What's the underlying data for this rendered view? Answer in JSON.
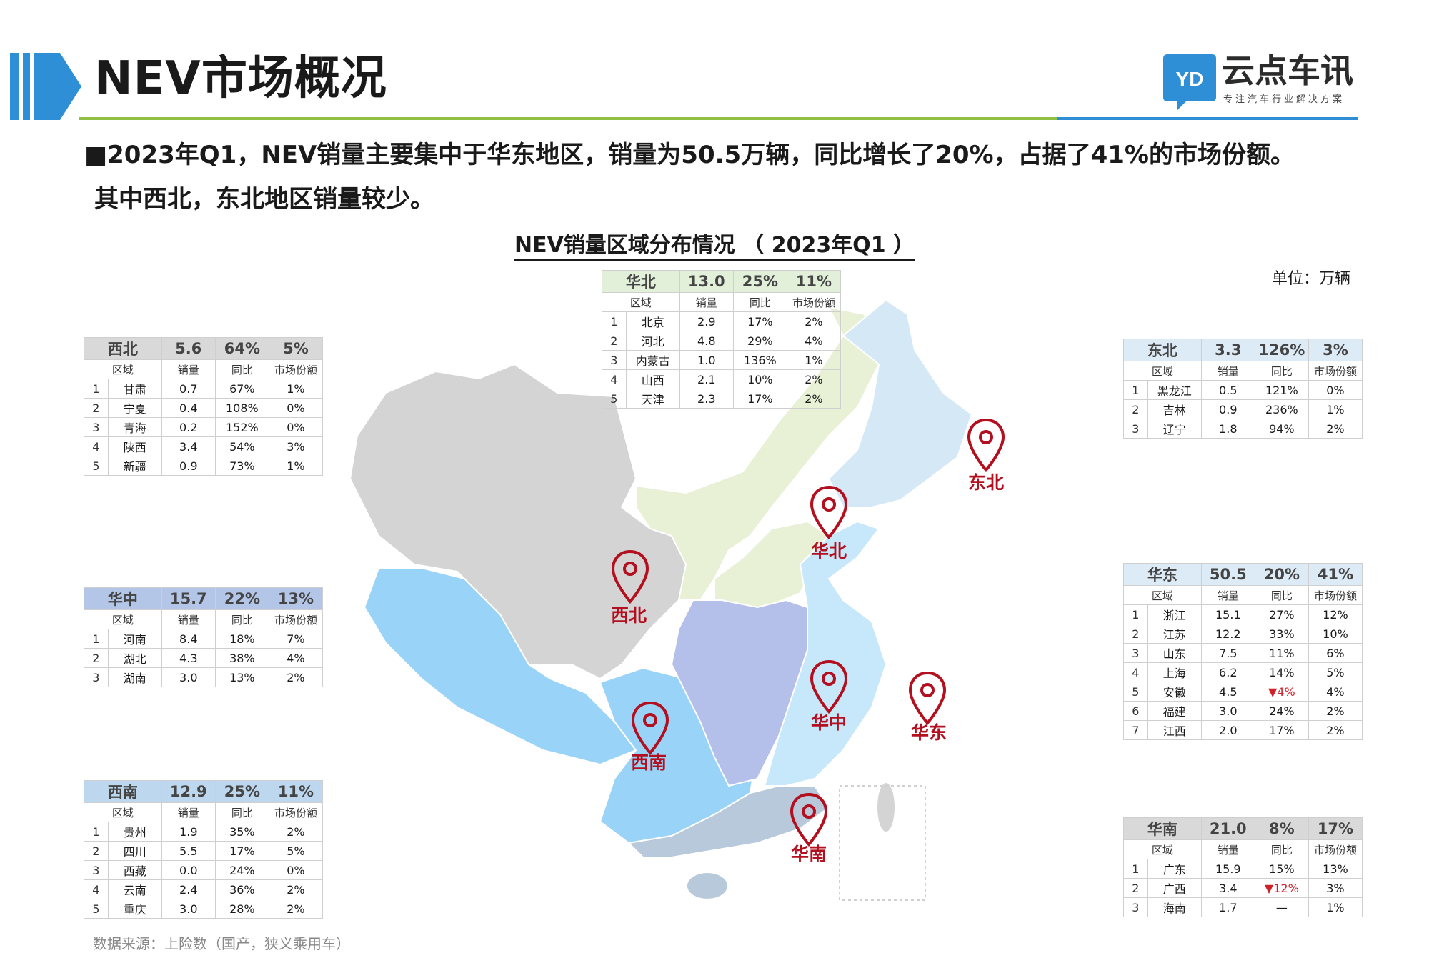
{
  "header": {
    "title": "NEV市场概况",
    "logo_text": "云点车讯",
    "logo_sub": "专注汽车行业解决方案"
  },
  "summary": {
    "line1": "■2023年Q1，NEV销量主要集中于华东地区，销量为50.5万辆，同比增长了20%，占据了41%的市场份额。",
    "line2": "其中西北，东北地区销量较少。"
  },
  "chart_title": "NEV销量区域分布情况 （ 2023年Q1 ）",
  "unit": "单位：万辆",
  "source": "数据来源：上险数（国产，狭义乘用车）",
  "columns": {
    "region": "区域",
    "sales": "销量",
    "yoy": "同比",
    "share": "市场份额"
  },
  "colors": {
    "xibei_head": "#d9d9d9",
    "huabei_head": "#e2efd9",
    "dongbei_head": "#ddebf7",
    "huazhong_head": "#b4c6e7",
    "huadong_head": "#ddebf7",
    "xinan_head": "#bdd7ee",
    "huanan_head": "#d9d9d9",
    "pin": "#b3101f"
  },
  "regions": {
    "xibei": {
      "name": "西北",
      "sales": "5.6",
      "yoy": "64%",
      "share": "5%",
      "rows": [
        {
          "idx": "1",
          "name": "甘肃",
          "sales": "0.7",
          "yoy": "67%",
          "share": "1%"
        },
        {
          "idx": "2",
          "name": "宁夏",
          "sales": "0.4",
          "yoy": "108%",
          "share": "0%"
        },
        {
          "idx": "3",
          "name": "青海",
          "sales": "0.2",
          "yoy": "152%",
          "share": "0%"
        },
        {
          "idx": "4",
          "name": "陕西",
          "sales": "3.4",
          "yoy": "54%",
          "share": "3%"
        },
        {
          "idx": "5",
          "name": "新疆",
          "sales": "0.9",
          "yoy": "73%",
          "share": "1%"
        }
      ]
    },
    "huabei": {
      "name": "华北",
      "sales": "13.0",
      "yoy": "25%",
      "share": "11%",
      "rows": [
        {
          "idx": "1",
          "name": "北京",
          "sales": "2.9",
          "yoy": "17%",
          "share": "2%"
        },
        {
          "idx": "2",
          "name": "河北",
          "sales": "4.8",
          "yoy": "29%",
          "share": "4%"
        },
        {
          "idx": "3",
          "name": "内蒙古",
          "sales": "1.0",
          "yoy": "136%",
          "share": "1%"
        },
        {
          "idx": "4",
          "name": "山西",
          "sales": "2.1",
          "yoy": "10%",
          "share": "2%"
        },
        {
          "idx": "5",
          "name": "天津",
          "sales": "2.3",
          "yoy": "17%",
          "share": "2%"
        }
      ]
    },
    "dongbei": {
      "name": "东北",
      "sales": "3.3",
      "yoy": "126%",
      "share": "3%",
      "rows": [
        {
          "idx": "1",
          "name": "黑龙江",
          "sales": "0.5",
          "yoy": "121%",
          "share": "0%"
        },
        {
          "idx": "2",
          "name": "吉林",
          "sales": "0.9",
          "yoy": "236%",
          "share": "1%"
        },
        {
          "idx": "3",
          "name": "辽宁",
          "sales": "1.8",
          "yoy": "94%",
          "share": "2%"
        }
      ]
    },
    "huazhong": {
      "name": "华中",
      "sales": "15.7",
      "yoy": "22%",
      "share": "13%",
      "rows": [
        {
          "idx": "1",
          "name": "河南",
          "sales": "8.4",
          "yoy": "18%",
          "share": "7%"
        },
        {
          "idx": "2",
          "name": "湖北",
          "sales": "4.3",
          "yoy": "38%",
          "share": "4%"
        },
        {
          "idx": "3",
          "name": "湖南",
          "sales": "3.0",
          "yoy": "13%",
          "share": "2%"
        }
      ]
    },
    "huadong": {
      "name": "华东",
      "sales": "50.5",
      "yoy": "20%",
      "share": "41%",
      "rows": [
        {
          "idx": "1",
          "name": "浙江",
          "sales": "15.1",
          "yoy": "27%",
          "share": "12%"
        },
        {
          "idx": "2",
          "name": "江苏",
          "sales": "12.2",
          "yoy": "33%",
          "share": "10%"
        },
        {
          "idx": "3",
          "name": "山东",
          "sales": "7.5",
          "yoy": "11%",
          "share": "6%"
        },
        {
          "idx": "4",
          "name": "上海",
          "sales": "6.2",
          "yoy": "14%",
          "share": "5%"
        },
        {
          "idx": "5",
          "name": "安徽",
          "sales": "4.5",
          "yoy": "▼4%",
          "share": "4%",
          "down": true
        },
        {
          "idx": "6",
          "name": "福建",
          "sales": "3.0",
          "yoy": "24%",
          "share": "2%"
        },
        {
          "idx": "7",
          "name": "江西",
          "sales": "2.0",
          "yoy": "17%",
          "share": "2%"
        }
      ]
    },
    "xinan": {
      "name": "西南",
      "sales": "12.9",
      "yoy": "25%",
      "share": "11%",
      "rows": [
        {
          "idx": "1",
          "name": "贵州",
          "sales": "1.9",
          "yoy": "35%",
          "share": "2%"
        },
        {
          "idx": "2",
          "name": "四川",
          "sales": "5.5",
          "yoy": "17%",
          "share": "5%"
        },
        {
          "idx": "3",
          "name": "西藏",
          "sales": "0.0",
          "yoy": "24%",
          "share": "0%"
        },
        {
          "idx": "4",
          "name": "云南",
          "sales": "2.4",
          "yoy": "36%",
          "share": "2%"
        },
        {
          "idx": "5",
          "name": "重庆",
          "sales": "3.0",
          "yoy": "28%",
          "share": "2%"
        }
      ]
    },
    "huanan": {
      "name": "华南",
      "sales": "21.0",
      "yoy": "8%",
      "share": "17%",
      "rows": [
        {
          "idx": "1",
          "name": "广东",
          "sales": "15.9",
          "yoy": "15%",
          "share": "13%"
        },
        {
          "idx": "2",
          "name": "广西",
          "sales": "3.4",
          "yoy": "▼12%",
          "share": "3%",
          "down": true
        },
        {
          "idx": "3",
          "name": "海南",
          "sales": "1.7",
          "yoy": "—",
          "share": "1%"
        }
      ]
    }
  },
  "map_labels": {
    "xibei": "西北",
    "huabei": "华北",
    "dongbei": "东北",
    "huazhong": "华中",
    "huadong": "华东",
    "xinan": "西南",
    "huanan": "华南"
  }
}
